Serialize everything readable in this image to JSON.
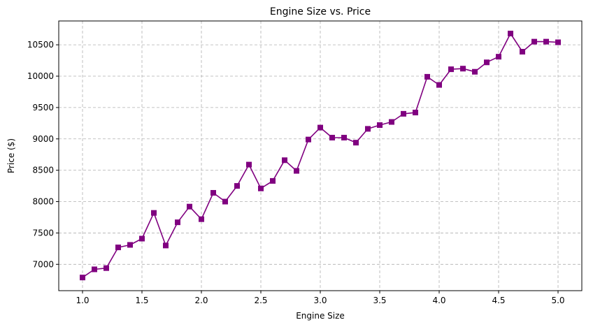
{
  "chart_data": {
    "type": "line",
    "title": "Engine Size vs. Price",
    "xlabel": "Engine Size",
    "ylabel": "Price ($)",
    "xlim": [
      0.8,
      5.2
    ],
    "ylim": [
      6580,
      10880
    ],
    "xticks": [
      1.0,
      1.5,
      2.0,
      2.5,
      3.0,
      3.5,
      4.0,
      4.5,
      5.0
    ],
    "xtick_labels": [
      "1.0",
      "1.5",
      "2.0",
      "2.5",
      "3.0",
      "3.5",
      "4.0",
      "4.5",
      "5.0"
    ],
    "yticks": [
      7000,
      7500,
      8000,
      8500,
      9000,
      9500,
      10000,
      10500
    ],
    "ytick_labels": [
      "7000",
      "7500",
      "8000",
      "8500",
      "9000",
      "9500",
      "10000",
      "10500"
    ],
    "grid": true,
    "line_color": "#800080",
    "marker": "square",
    "x": [
      1.0,
      1.1,
      1.2,
      1.3,
      1.4,
      1.5,
      1.6,
      1.7,
      1.8,
      1.9,
      2.0,
      2.1,
      2.2,
      2.3,
      2.4,
      2.5,
      2.6,
      2.7,
      2.8,
      2.9,
      3.0,
      3.1,
      3.2,
      3.3,
      3.4,
      3.5,
      3.6,
      3.7,
      3.8,
      3.9,
      4.0,
      4.1,
      4.2,
      4.3,
      4.4,
      4.5,
      4.6,
      4.7,
      4.8,
      4.9,
      5.0
    ],
    "y": [
      6790,
      6920,
      6940,
      7270,
      7310,
      7410,
      7820,
      7300,
      7670,
      7920,
      7720,
      8140,
      8000,
      8250,
      8590,
      8210,
      8330,
      8660,
      8490,
      8990,
      9180,
      9020,
      9020,
      8940,
      9160,
      9220,
      9270,
      9400,
      9420,
      9990,
      9860,
      10110,
      10120,
      10070,
      10220,
      10310,
      10680,
      10390,
      10550,
      10550,
      10540
    ]
  }
}
